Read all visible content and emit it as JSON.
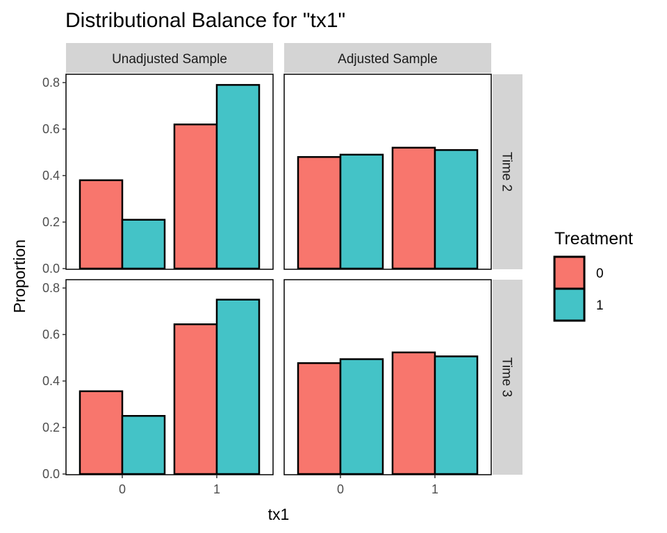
{
  "chart_data": {
    "type": "bar",
    "title": "Distributional Balance for \"tx1\"",
    "xlabel": "tx1",
    "ylabel": "Proportion",
    "ylim": [
      0,
      0.8
    ],
    "yticks": [
      "0.0",
      "0.2",
      "0.4",
      "0.6",
      "0.8"
    ],
    "categories": [
      "0",
      "1"
    ],
    "column_facets": [
      "Unadjusted Sample",
      "Adjusted Sample"
    ],
    "row_facets": [
      "Time 2",
      "Time 3"
    ],
    "legend": {
      "title": "Treatment",
      "position": "right",
      "entries": [
        {
          "label": "0",
          "color": "#F8766D"
        },
        {
          "label": "1",
          "color": "#44C3C7"
        }
      ]
    },
    "grid": false,
    "panels": [
      {
        "row": "Time 2",
        "column": "Unadjusted Sample",
        "series": [
          {
            "name": "0",
            "values": [
              0.38,
              0.62
            ]
          },
          {
            "name": "1",
            "values": [
              0.21,
              0.79
            ]
          }
        ]
      },
      {
        "row": "Time 2",
        "column": "Adjusted Sample",
        "series": [
          {
            "name": "0",
            "values": [
              0.48,
              0.52
            ]
          },
          {
            "name": "1",
            "values": [
              0.49,
              0.51
            ]
          }
        ]
      },
      {
        "row": "Time 3",
        "column": "Unadjusted Sample",
        "series": [
          {
            "name": "0",
            "values": [
              0.356,
              0.644
            ]
          },
          {
            "name": "1",
            "values": [
              0.25,
              0.75
            ]
          }
        ]
      },
      {
        "row": "Time 3",
        "column": "Adjusted Sample",
        "series": [
          {
            "name": "0",
            "values": [
              0.477,
              0.523
            ]
          },
          {
            "name": "1",
            "values": [
              0.494,
              0.506
            ]
          }
        ]
      }
    ]
  }
}
